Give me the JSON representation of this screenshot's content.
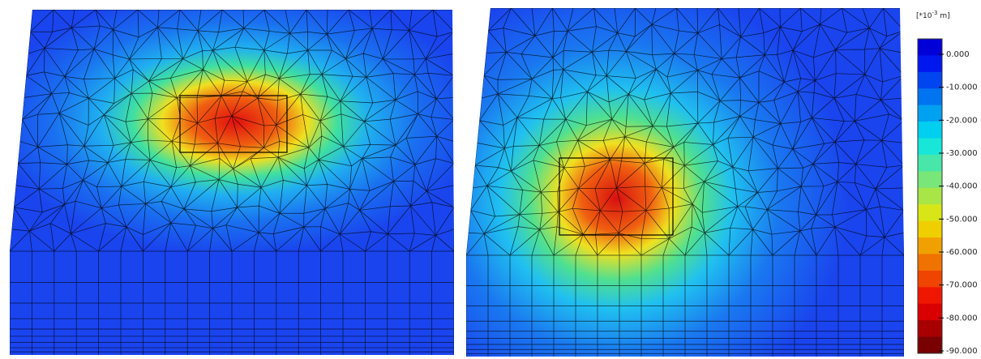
{
  "legend": {
    "unit_prefix": "[*10",
    "unit_exponent": "-3",
    "unit_suffix": " m]",
    "ticks": [
      "0.000",
      "-10.000",
      "-20.000",
      "-30.000",
      "-40.000",
      "-50.000",
      "-60.000",
      "-70.000",
      "-80.000",
      "-90.000"
    ]
  }
}
